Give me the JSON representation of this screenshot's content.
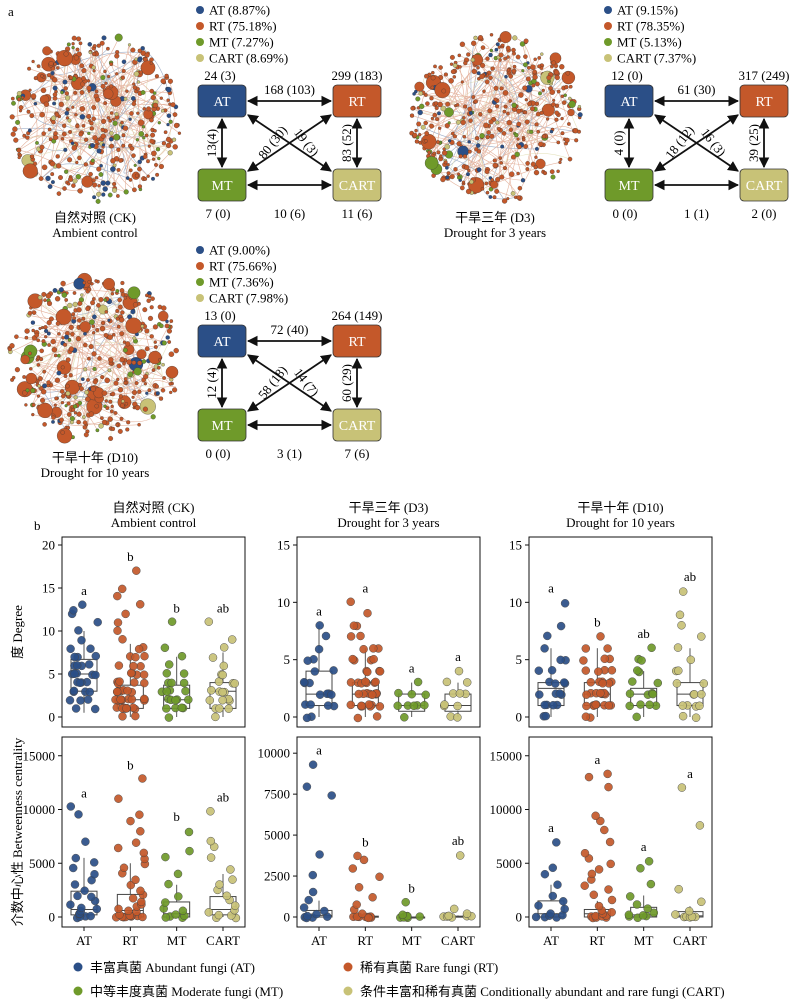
{
  "panel_a": {
    "label": "a",
    "networks": [
      {
        "title_cn": "自然对照 (CK)",
        "title_en": "Ambient control",
        "legend": [
          "AT (8.87%)",
          "RT (75.18%)",
          "MT (7.27%)",
          "CART (8.69%)"
        ],
        "nodes": {
          "AT": "24 (3)",
          "RT": "299 (183)",
          "MT": "7 (0)",
          "CART": "11 (6)"
        },
        "edges": {
          "AT_RT": "168 (103)",
          "AT_MT": "13(4)",
          "RT_CART": "83 (52)",
          "MT_CART": "10 (6)",
          "MT_RT": "80 (30)",
          "AT_CART": "19 (3)"
        }
      },
      {
        "title_cn": "干旱三年 (D3)",
        "title_en": "Drought for 3 years",
        "legend": [
          "AT (9.15%)",
          "RT (78.35%)",
          "MT (5.13%)",
          "CART (7.37%)"
        ],
        "nodes": {
          "AT": "12 (0)",
          "RT": "317 (249)",
          "MT": "0 (0)",
          "CART": "2 (0)"
        },
        "edges": {
          "AT_RT": "61 (30)",
          "AT_MT": "4 (0)",
          "RT_CART": "39 (25)",
          "MT_CART": "1 (1)",
          "MT_RT": "18 (12)",
          "AT_CART": "16 (3)"
        }
      },
      {
        "title_cn": "干旱十年 (D10)",
        "title_en": "Drought for 10 years",
        "legend": [
          "AT (9.00%)",
          "RT (75.66%)",
          "MT (7.36%)",
          "CART (7.98%)"
        ],
        "nodes": {
          "AT": "13 (0)",
          "RT": "264 (149)",
          "MT": "0 (0)",
          "CART": "7 (6)"
        },
        "edges": {
          "AT_RT": "72 (40)",
          "AT_MT": "12 (4)",
          "RT_CART": "60 (29)",
          "MT_CART": "3 (1)",
          "MT_RT": "58 (18)",
          "AT_CART": "14 (7)"
        }
      }
    ]
  },
  "panel_b": {
    "label": "b"
  },
  "colors": {
    "AT": "#2b4f87",
    "RT": "#c4582a",
    "MT": "#6f9a2a",
    "CART": "#c8c277"
  },
  "legend_bottom": [
    {
      "key": "AT",
      "label": "丰富真菌 Abundant fungi (AT)"
    },
    {
      "key": "RT",
      "label": "稀有真菌 Rare fungi (RT)"
    },
    {
      "key": "MT",
      "label": "中等丰度真菌 Moderate fungi (MT)"
    },
    {
      "key": "CART",
      "label": "条件丰富和稀有真菌 Conditionally abundant and rare fungi (CART)"
    }
  ],
  "chart_data": [
    {
      "type": "box-scatter",
      "title": "自然对照 (CK) Ambient control",
      "ylabel": "度 Degree",
      "categories": [
        "AT",
        "RT",
        "MT",
        "CART"
      ],
      "ylim": [
        0,
        20
      ],
      "yticks": [
        0,
        5,
        10,
        15,
        20
      ],
      "boxes": [
        {
          "q1": 3,
          "median": 5,
          "q3": 6.7,
          "lo": 0.5,
          "hi": 10
        },
        {
          "q1": 1,
          "median": 2,
          "q3": 3.7,
          "lo": 0,
          "hi": 8.5
        },
        {
          "q1": 1,
          "median": 2,
          "q3": 3.7,
          "lo": 0,
          "hi": 7
        },
        {
          "q1": 1,
          "median": 3,
          "q3": 4,
          "lo": 0,
          "hi": 7.5
        }
      ],
      "letters": [
        "a",
        "b",
        "b",
        "ab"
      ],
      "points": [
        [
          1,
          1,
          2,
          2,
          2,
          3,
          3,
          3,
          3,
          4,
          4,
          4,
          4,
          5,
          5,
          5,
          5,
          5,
          6,
          6,
          6,
          6,
          7,
          7,
          7,
          8,
          8,
          9,
          10,
          11,
          12,
          12.5,
          13
        ],
        [
          0,
          0,
          1,
          1,
          1,
          1,
          1,
          1,
          1,
          1,
          2,
          2,
          2,
          2,
          2,
          2,
          2,
          2,
          2,
          2,
          3,
          3,
          3,
          3,
          3,
          3,
          3,
          4,
          4,
          4,
          4,
          4,
          5,
          5,
          5,
          5,
          6,
          6,
          6,
          7,
          7,
          7,
          8,
          8,
          9,
          10,
          11,
          12,
          13,
          14,
          15,
          17
        ],
        [
          0,
          1,
          1,
          1,
          1,
          2,
          2,
          2,
          2,
          2,
          3,
          3,
          3,
          3,
          4,
          4,
          4,
          5,
          5,
          6,
          7,
          8,
          11
        ],
        [
          0,
          1,
          1,
          1,
          2,
          2,
          2,
          2,
          3,
          3,
          3,
          3,
          4,
          4,
          4,
          5,
          5,
          6,
          7,
          8,
          9,
          11
        ]
      ]
    },
    {
      "type": "box-scatter",
      "title": "干旱三年 (D3) Drought for 3 years",
      "ylabel": "度 Degree",
      "categories": [
        "AT",
        "RT",
        "MT",
        "CART"
      ],
      "ylim": [
        0,
        15
      ],
      "yticks": [
        0,
        5,
        10,
        15
      ],
      "boxes": [
        {
          "q1": 1,
          "median": 2,
          "q3": 4,
          "lo": 0,
          "hi": 8
        },
        {
          "q1": 1,
          "median": 2,
          "q3": 3,
          "lo": 0,
          "hi": 6
        },
        {
          "q1": 0.5,
          "median": 1,
          "q3": 2,
          "lo": 0,
          "hi": 3
        },
        {
          "q1": 0.5,
          "median": 1,
          "q3": 2,
          "lo": 0,
          "hi": 3
        }
      ],
      "letters": [
        "a",
        "a",
        "a",
        "a"
      ],
      "points": [
        [
          0,
          0,
          1,
          1,
          1,
          1,
          2,
          2,
          2,
          2,
          3,
          3,
          3,
          4,
          4,
          5,
          5,
          6,
          7,
          8
        ],
        [
          0,
          0,
          1,
          1,
          1,
          1,
          1,
          1,
          1,
          1,
          2,
          2,
          2,
          2,
          2,
          2,
          2,
          2,
          2,
          3,
          3,
          3,
          3,
          3,
          3,
          3,
          4,
          4,
          4,
          4,
          5,
          5,
          5,
          5,
          6,
          6,
          6,
          7,
          7,
          8,
          8,
          9,
          10
        ],
        [
          0,
          1,
          1,
          1,
          1,
          1,
          2,
          2,
          2,
          3
        ],
        [
          0,
          0,
          1,
          1,
          1,
          2,
          2,
          2,
          3,
          3,
          4
        ]
      ]
    },
    {
      "type": "box-scatter",
      "title": "干旱十年 (D10) Drought for 10 years",
      "ylabel": "度 Degree",
      "categories": [
        "AT",
        "RT",
        "MT",
        "CART"
      ],
      "ylim": [
        0,
        15
      ],
      "yticks": [
        0,
        5,
        10,
        15
      ],
      "boxes": [
        {
          "q1": 1,
          "median": 2.5,
          "q3": 3,
          "lo": 0,
          "hi": 6
        },
        {
          "q1": 1,
          "median": 2,
          "q3": 3,
          "lo": 0,
          "hi": 6
        },
        {
          "q1": 1,
          "median": 2,
          "q3": 2.5,
          "lo": 0,
          "hi": 4
        },
        {
          "q1": 1,
          "median": 2,
          "q3": 3,
          "lo": 0,
          "hi": 6
        }
      ],
      "letters": [
        "a",
        "b",
        "ab",
        "ab"
      ],
      "points": [
        [
          0,
          0,
          1,
          1,
          1,
          1,
          2,
          2,
          2,
          2,
          3,
          3,
          3,
          3,
          4,
          4,
          5,
          5,
          6,
          7,
          8,
          10
        ],
        [
          0,
          0,
          1,
          1,
          1,
          1,
          1,
          1,
          1,
          1,
          2,
          2,
          2,
          2,
          2,
          2,
          2,
          2,
          3,
          3,
          3,
          3,
          3,
          3,
          4,
          4,
          4,
          4,
          5,
          5,
          5,
          6,
          6,
          7
        ],
        [
          0,
          1,
          1,
          1,
          1,
          2,
          2,
          2,
          2,
          3,
          3,
          4,
          4,
          5,
          5,
          6
        ],
        [
          0,
          0,
          1,
          1,
          1,
          1,
          2,
          2,
          2,
          3,
          3,
          4,
          4,
          5,
          6,
          7,
          8,
          9,
          11
        ]
      ]
    },
    {
      "type": "box-scatter",
      "ylabel": "介数中心性 Betweenness centrality",
      "categories": [
        "AT",
        "RT",
        "MT",
        "CART"
      ],
      "ylim": [
        0,
        16000
      ],
      "yticks": [
        0,
        5000,
        10000,
        15000
      ],
      "boxes": [
        {
          "q1": 200,
          "median": 700,
          "q3": 2400,
          "lo": 0,
          "hi": 5500
        },
        {
          "q1": 0,
          "median": 600,
          "q3": 2100,
          "lo": 0,
          "hi": 5000
        },
        {
          "q1": 0,
          "median": 300,
          "q3": 1400,
          "lo": 0,
          "hi": 3000
        },
        {
          "q1": 200,
          "median": 700,
          "q3": 1900,
          "lo": 0,
          "hi": 4000
        }
      ],
      "letters": [
        "a",
        "b",
        "b",
        "ab"
      ],
      "points": [
        [
          0,
          0,
          0,
          100,
          200,
          300,
          500,
          700,
          900,
          1200,
          1500,
          1800,
          2000,
          2400,
          3000,
          3500,
          4000,
          4500,
          5000,
          5500,
          7000,
          9500,
          10200
        ],
        [
          0,
          0,
          0,
          0,
          0,
          0,
          100,
          100,
          200,
          300,
          500,
          600,
          800,
          1000,
          1200,
          1500,
          1800,
          2100,
          2500,
          3000,
          3500,
          4000,
          4500,
          5000,
          5500,
          6000,
          6500,
          7000,
          8000,
          9000,
          9500,
          11000,
          12800
        ],
        [
          0,
          0,
          0,
          100,
          300,
          500,
          800,
          1400,
          2000,
          3000,
          4000,
          5500,
          6200,
          8000
        ],
        [
          0,
          0,
          100,
          200,
          400,
          700,
          1000,
          1500,
          1900,
          2500,
          3000,
          3500,
          4500,
          5500,
          6500,
          7000,
          9800
        ]
      ]
    },
    {
      "type": "box-scatter",
      "categories": [
        "AT",
        "RT",
        "MT",
        "CART"
      ],
      "ylim": [
        0,
        10500
      ],
      "yticks": [
        0,
        2500,
        5000,
        7500,
        10000
      ],
      "boxes": [
        {
          "q1": 0,
          "median": 100,
          "q3": 400,
          "lo": 0,
          "hi": 1000
        },
        {
          "q1": 0,
          "median": 0,
          "q3": 50,
          "lo": 0,
          "hi": 100
        },
        {
          "q1": 0,
          "median": 0,
          "q3": 0,
          "lo": 0,
          "hi": 0
        },
        {
          "q1": 0,
          "median": 0,
          "q3": 50,
          "lo": 0,
          "hi": 100
        }
      ],
      "letters": [
        "a",
        "b",
        "b",
        "ab"
      ],
      "points": [
        [
          0,
          0,
          0,
          0,
          100,
          200,
          400,
          600,
          1000,
          1500,
          2500,
          3800,
          7400,
          7900,
          9300
        ],
        [
          0,
          0,
          0,
          0,
          0,
          0,
          0,
          0,
          0,
          200,
          500,
          800,
          1200,
          1800,
          2500,
          3000,
          3500,
          3700
        ],
        [
          0,
          0,
          0,
          0,
          0,
          0,
          0,
          100,
          900
        ],
        [
          0,
          0,
          0,
          0,
          0,
          0,
          100,
          200,
          500,
          3800
        ]
      ]
    },
    {
      "type": "box-scatter",
      "categories": [
        "AT",
        "RT",
        "MT",
        "CART"
      ],
      "ylim": [
        0,
        16000
      ],
      "yticks": [
        0,
        5000,
        10000,
        15000
      ],
      "boxes": [
        {
          "q1": 0,
          "median": 300,
          "q3": 1500,
          "lo": 0,
          "hi": 3000
        },
        {
          "q1": 0,
          "median": 300,
          "q3": 700,
          "lo": 0,
          "hi": 1500
        },
        {
          "q1": 0,
          "median": 200,
          "q3": 900,
          "lo": 0,
          "hi": 2000
        },
        {
          "q1": 0,
          "median": 100,
          "q3": 500,
          "lo": 0,
          "hi": 1000
        }
      ],
      "letters": [
        "a",
        "a",
        "a",
        "a"
      ],
      "points": [
        [
          0,
          0,
          0,
          100,
          200,
          400,
          700,
          1000,
          1500,
          2000,
          3000,
          4000,
          4500,
          7000
        ],
        [
          0,
          0,
          0,
          0,
          0,
          100,
          200,
          300,
          500,
          700,
          1000,
          1500,
          2000,
          2500,
          3000,
          3500,
          4000,
          4500,
          5000,
          5500,
          6000,
          7000,
          8000,
          9000,
          9500,
          12000,
          13000,
          13300
        ],
        [
          0,
          0,
          0,
          100,
          200,
          400,
          800,
          1200,
          2000,
          3000,
          4500,
          5200
        ],
        [
          0,
          0,
          0,
          0,
          100,
          200,
          500,
          1500,
          2500,
          8500,
          12000
        ]
      ]
    }
  ]
}
